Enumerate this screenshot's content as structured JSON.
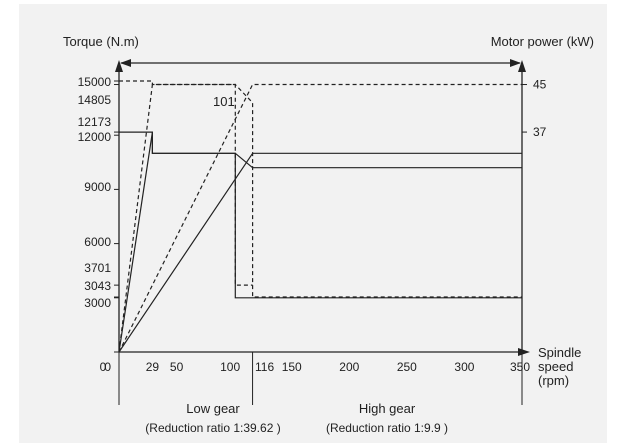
{
  "chart_data": {
    "type": "line",
    "title": "",
    "y_left_label": "Torque (N.m)",
    "y_right_label": "Motor power (kW)",
    "x_label_lines": [
      "Spindle",
      "speed",
      "(rpm)"
    ],
    "x_ticks": [
      0,
      29,
      50,
      100,
      116,
      150,
      200,
      250,
      300,
      350
    ],
    "y_left_ticks": [
      0,
      3000,
      3043,
      3701,
      6000,
      9000,
      12000,
      12173,
      14805,
      15000
    ],
    "y_right_ticks": [
      37,
      45
    ],
    "xlim": [
      0,
      350
    ],
    "ylim": [
      0,
      15000
    ],
    "annotation": "101",
    "gear_ranges": [
      {
        "label": "Low gear",
        "sublabel": "(Reduction ratio 1:39.62 )",
        "x_range": [
          0,
          116
        ]
      },
      {
        "label": "High gear",
        "sublabel": "(Reduction ratio 1:9.9 )",
        "x_range": [
          116,
          350
        ]
      }
    ],
    "series": [
      {
        "style": "dashed",
        "points": [
          [
            0,
            15000
          ],
          [
            29,
            15000
          ],
          [
            29,
            14805
          ],
          [
            101,
            14805
          ],
          [
            101,
            3701
          ],
          [
            116,
            3701
          ]
        ]
      },
      {
        "style": "dashed",
        "points": [
          [
            0,
            0
          ],
          [
            29,
            14805
          ],
          [
            101,
            14805
          ],
          [
            116,
            13800
          ],
          [
            116,
            3043
          ],
          [
            350,
            3043
          ]
        ]
      },
      {
        "style": "solid",
        "points": [
          [
            0,
            12173
          ],
          [
            29,
            12173
          ],
          [
            29,
            11000
          ],
          [
            101,
            11000
          ],
          [
            101,
            3000
          ],
          [
            116,
            3000
          ],
          [
            350,
            3000
          ]
        ]
      },
      {
        "style": "solid",
        "points": [
          [
            0,
            0
          ],
          [
            29,
            12173
          ],
          [
            29,
            11000
          ],
          [
            101,
            11000
          ],
          [
            116,
            10200
          ],
          [
            350,
            10200
          ]
        ]
      },
      {
        "style": "dashed",
        "points": [
          [
            0,
            0
          ],
          [
            116,
            14805
          ],
          [
            350,
            14805
          ]
        ]
      },
      {
        "style": "solid",
        "points": [
          [
            0,
            0
          ],
          [
            116,
            11000
          ],
          [
            350,
            11000
          ]
        ]
      }
    ]
  }
}
